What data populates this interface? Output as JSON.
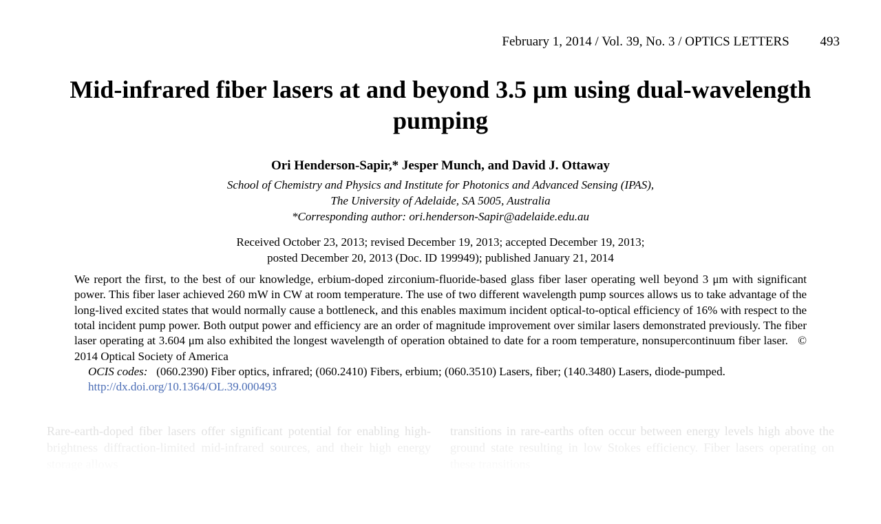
{
  "header": {
    "date": "February 1, 2014",
    "volume": "Vol. 39, No. 3",
    "journal": "OPTICS LETTERS",
    "page_number": "493"
  },
  "title": "Mid-infrared fiber lasers at and beyond 3.5 μm using dual-wavelength pumping",
  "authors": "Ori Henderson-Sapir,* Jesper Munch, and David J. Ottaway",
  "affiliation_line1": "School of Chemistry and Physics and Institute for Photonics and Advanced Sensing (IPAS),",
  "affiliation_line2": "The University of Adelaide, SA 5005, Australia",
  "corresponding": "*Corresponding author: ori.henderson-Sapir@adelaide.edu.au",
  "dates_line1": "Received October 23, 2013; revised December 19, 2013; accepted December 19, 2013;",
  "dates_line2": "posted December 20, 2013 (Doc. ID 199949); published January 21, 2014",
  "abstract": "We report the first, to the best of our knowledge, erbium-doped zirconium-fluoride-based glass fiber laser operating well beyond 3 μm with significant power. This fiber laser achieved 260 mW in CW at room temperature. The use of two different wavelength pump sources allows us to take advantage of the long-lived excited states that would normally cause a bottleneck, and this enables maximum incident optical-to-optical efficiency of 16% with respect to the total incident pump power. Both output power and efficiency are an order of magnitude improvement over similar lasers demonstrated previously. The fiber laser operating at 3.604 μm also exhibited the longest wavelength of operation obtained to date for a room temperature, nonsupercontinuum fiber laser.   © 2014 Optical Society of America",
  "ocis_label": "OCIS codes:",
  "ocis_text": "   (060.2390) Fiber optics, infrared; (060.2410) Fibers, erbium; (060.3510) Lasers, fiber; (140.3480) Lasers, diode-pumped.",
  "doi": "http://dx.doi.org/10.1364/OL.39.000493",
  "body_col1": "Rare-earth-doped fiber lasers offer significant potential for enabling high-brightness diffraction-limited mid-infrared sources, and their high energy storage allows",
  "body_col2": "transitions in rare-earths often occur between energy levels high above the ground state resulting in low Stokes efficiency. Fiber lasers operating on these transitions",
  "colors": {
    "text": "#000000",
    "link": "#4b6db5",
    "faded": "#cccccc",
    "background": "#ffffff"
  },
  "typography": {
    "title_fontsize": 36,
    "authors_fontsize": 19,
    "affiliation_fontsize": 17,
    "abstract_fontsize": 17,
    "body_fontsize": 18,
    "header_fontsize": 19
  }
}
